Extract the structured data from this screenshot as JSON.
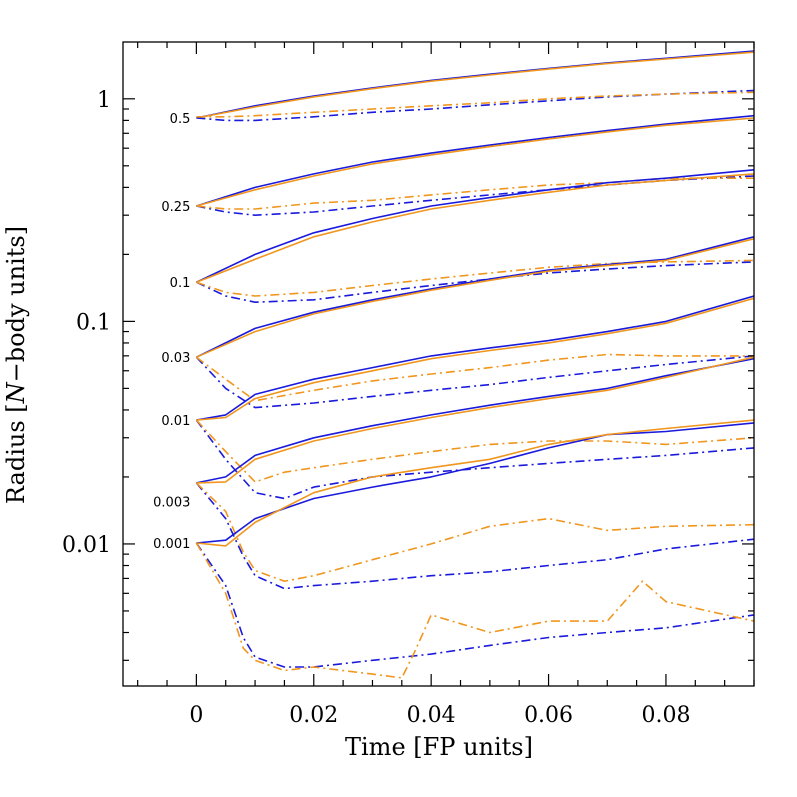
{
  "chart_data": {
    "type": "line",
    "xlabel": "Time [FP units]",
    "ylabel_parts": [
      "Radius [",
      "N",
      "−body units]"
    ],
    "xlim": [
      -0.0125,
      0.095
    ],
    "ylim": [
      0.0023,
      1.8
    ],
    "yscale": "log",
    "grid": false,
    "x_ticks": [
      0,
      0.02,
      0.04,
      0.06,
      0.08
    ],
    "x_tick_labels": [
      "0",
      "0.02",
      "0.04",
      "0.06",
      "0.08"
    ],
    "y_ticks": [
      0.01,
      0.1,
      1
    ],
    "y_tick_labels": [
      "0.01",
      "0.1",
      "1"
    ],
    "colors": {
      "blue": "#1a1adc",
      "orange": "#f0961e"
    },
    "mass_fraction_labels": [
      {
        "text": "0.5",
        "y": 0.82
      },
      {
        "text": "0.25",
        "y": 0.33
      },
      {
        "text": "0.1",
        "y": 0.15
      },
      {
        "text": "0.03",
        "y": 0.069
      },
      {
        "text": "0.01",
        "y": 0.036
      },
      {
        "text": "0.003",
        "y": 0.0155
      },
      {
        "text": "0.001",
        "y": 0.0101
      }
    ],
    "series": [
      {
        "color": "blue",
        "style": "solid",
        "x": [
          0,
          0.01,
          0.02,
          0.03,
          0.04,
          0.05,
          0.06,
          0.07,
          0.08,
          0.095
        ],
        "y": [
          0.82,
          0.93,
          1.03,
          1.12,
          1.21,
          1.29,
          1.37,
          1.45,
          1.52,
          1.64
        ]
      },
      {
        "color": "orange",
        "style": "solid",
        "x": [
          0,
          0.01,
          0.02,
          0.03,
          0.04,
          0.05,
          0.06,
          0.07,
          0.08,
          0.095
        ],
        "y": [
          0.82,
          0.92,
          1.02,
          1.11,
          1.2,
          1.28,
          1.36,
          1.44,
          1.51,
          1.62
        ]
      },
      {
        "color": "blue",
        "style": "dashdot",
        "x": [
          0,
          0.005,
          0.01,
          0.02,
          0.03,
          0.04,
          0.05,
          0.06,
          0.07,
          0.08,
          0.095
        ],
        "y": [
          0.82,
          0.8,
          0.8,
          0.83,
          0.87,
          0.9,
          0.94,
          0.98,
          1.02,
          1.05,
          1.09
        ]
      },
      {
        "color": "orange",
        "style": "dashdot",
        "x": [
          0,
          0.005,
          0.01,
          0.02,
          0.03,
          0.04,
          0.05,
          0.06,
          0.07,
          0.08,
          0.095
        ],
        "y": [
          0.83,
          0.83,
          0.84,
          0.87,
          0.9,
          0.93,
          0.96,
          1.0,
          1.03,
          1.05,
          1.07
        ]
      },
      {
        "color": "blue",
        "style": "solid",
        "x": [
          0,
          0.01,
          0.02,
          0.03,
          0.04,
          0.05,
          0.06,
          0.07,
          0.08,
          0.095
        ],
        "y": [
          0.33,
          0.4,
          0.46,
          0.52,
          0.57,
          0.62,
          0.67,
          0.72,
          0.77,
          0.84
        ]
      },
      {
        "color": "orange",
        "style": "solid",
        "x": [
          0,
          0.01,
          0.02,
          0.03,
          0.04,
          0.05,
          0.06,
          0.07,
          0.08,
          0.095
        ],
        "y": [
          0.33,
          0.39,
          0.45,
          0.51,
          0.56,
          0.61,
          0.66,
          0.71,
          0.76,
          0.82
        ]
      },
      {
        "color": "blue",
        "style": "dashdot",
        "x": [
          0,
          0.005,
          0.01,
          0.02,
          0.03,
          0.04,
          0.05,
          0.06,
          0.07,
          0.08,
          0.095
        ],
        "y": [
          0.33,
          0.31,
          0.3,
          0.31,
          0.33,
          0.35,
          0.37,
          0.39,
          0.41,
          0.43,
          0.45
        ]
      },
      {
        "color": "orange",
        "style": "dashdot",
        "x": [
          0,
          0.005,
          0.01,
          0.02,
          0.03,
          0.04,
          0.05,
          0.06,
          0.07,
          0.08,
          0.095
        ],
        "y": [
          0.33,
          0.32,
          0.32,
          0.34,
          0.35,
          0.37,
          0.39,
          0.41,
          0.42,
          0.44,
          0.44
        ]
      },
      {
        "color": "blue",
        "style": "solid",
        "x": [
          0,
          0.01,
          0.02,
          0.03,
          0.04,
          0.05,
          0.06,
          0.07,
          0.08,
          0.095
        ],
        "y": [
          0.15,
          0.2,
          0.25,
          0.29,
          0.33,
          0.36,
          0.39,
          0.42,
          0.44,
          0.48
        ]
      },
      {
        "color": "orange",
        "style": "solid",
        "x": [
          0,
          0.01,
          0.02,
          0.03,
          0.04,
          0.05,
          0.06,
          0.07,
          0.08,
          0.095
        ],
        "y": [
          0.15,
          0.19,
          0.24,
          0.28,
          0.32,
          0.35,
          0.38,
          0.41,
          0.43,
          0.46
        ]
      },
      {
        "color": "blue",
        "style": "dashdot",
        "x": [
          0,
          0.005,
          0.01,
          0.02,
          0.03,
          0.04,
          0.05,
          0.06,
          0.07,
          0.08,
          0.095
        ],
        "y": [
          0.15,
          0.13,
          0.122,
          0.125,
          0.135,
          0.145,
          0.155,
          0.165,
          0.172,
          0.178,
          0.185
        ]
      },
      {
        "color": "orange",
        "style": "dashdot",
        "x": [
          0,
          0.005,
          0.01,
          0.02,
          0.03,
          0.04,
          0.05,
          0.06,
          0.07,
          0.08,
          0.095
        ],
        "y": [
          0.15,
          0.135,
          0.13,
          0.135,
          0.145,
          0.155,
          0.165,
          0.175,
          0.182,
          0.185,
          0.188
        ]
      },
      {
        "color": "blue",
        "style": "solid",
        "x": [
          0,
          0.01,
          0.02,
          0.03,
          0.04,
          0.05,
          0.06,
          0.07,
          0.08,
          0.095
        ],
        "y": [
          0.069,
          0.093,
          0.11,
          0.125,
          0.14,
          0.155,
          0.17,
          0.18,
          0.19,
          0.24
        ]
      },
      {
        "color": "orange",
        "style": "solid",
        "x": [
          0,
          0.01,
          0.02,
          0.03,
          0.04,
          0.05,
          0.06,
          0.07,
          0.08,
          0.095
        ],
        "y": [
          0.069,
          0.09,
          0.108,
          0.123,
          0.138,
          0.153,
          0.168,
          0.178,
          0.188,
          0.235
        ]
      },
      {
        "color": "blue",
        "style": "dashdot",
        "x": [
          0,
          0.005,
          0.01,
          0.02,
          0.03,
          0.04,
          0.05,
          0.06,
          0.07,
          0.08,
          0.095
        ],
        "y": [
          0.069,
          0.05,
          0.041,
          0.043,
          0.046,
          0.049,
          0.052,
          0.056,
          0.06,
          0.064,
          0.07
        ]
      },
      {
        "color": "orange",
        "style": "dashdot",
        "x": [
          0,
          0.005,
          0.01,
          0.02,
          0.03,
          0.04,
          0.05,
          0.06,
          0.07,
          0.08,
          0.095
        ],
        "y": [
          0.069,
          0.055,
          0.044,
          0.049,
          0.054,
          0.058,
          0.062,
          0.067,
          0.071,
          0.07,
          0.07
        ]
      },
      {
        "color": "blue",
        "style": "solid",
        "x": [
          0,
          0.005,
          0.01,
          0.02,
          0.03,
          0.04,
          0.05,
          0.06,
          0.07,
          0.08,
          0.095
        ],
        "y": [
          0.036,
          0.038,
          0.047,
          0.055,
          0.062,
          0.07,
          0.076,
          0.082,
          0.09,
          0.1,
          0.13
        ]
      },
      {
        "color": "orange",
        "style": "solid",
        "x": [
          0,
          0.005,
          0.01,
          0.02,
          0.03,
          0.04,
          0.05,
          0.06,
          0.07,
          0.08,
          0.095
        ],
        "y": [
          0.036,
          0.037,
          0.045,
          0.053,
          0.06,
          0.068,
          0.074,
          0.08,
          0.088,
          0.098,
          0.127
        ]
      },
      {
        "color": "blue",
        "style": "dashdot",
        "x": [
          0,
          0.005,
          0.01,
          0.015,
          0.02,
          0.03,
          0.04,
          0.05,
          0.06,
          0.07,
          0.08,
          0.095
        ],
        "y": [
          0.036,
          0.024,
          0.017,
          0.016,
          0.018,
          0.02,
          0.021,
          0.022,
          0.023,
          0.024,
          0.025,
          0.027
        ]
      },
      {
        "color": "orange",
        "style": "dashdot",
        "x": [
          0,
          0.005,
          0.01,
          0.015,
          0.02,
          0.03,
          0.04,
          0.05,
          0.06,
          0.07,
          0.08,
          0.095
        ],
        "y": [
          0.036,
          0.026,
          0.019,
          0.021,
          0.022,
          0.024,
          0.026,
          0.028,
          0.029,
          0.029,
          0.028,
          0.03
        ]
      },
      {
        "color": "blue",
        "style": "solid",
        "x": [
          0,
          0.005,
          0.01,
          0.02,
          0.03,
          0.04,
          0.05,
          0.06,
          0.07,
          0.08,
          0.095
        ],
        "y": [
          0.0188,
          0.02,
          0.025,
          0.03,
          0.034,
          0.038,
          0.042,
          0.046,
          0.05,
          0.057,
          0.068
        ]
      },
      {
        "color": "orange",
        "style": "solid",
        "x": [
          0,
          0.005,
          0.01,
          0.02,
          0.03,
          0.04,
          0.05,
          0.06,
          0.07,
          0.08,
          0.095
        ],
        "y": [
          0.0188,
          0.019,
          0.024,
          0.029,
          0.033,
          0.037,
          0.041,
          0.045,
          0.049,
          0.056,
          0.069
        ]
      },
      {
        "color": "blue",
        "style": "dashdot",
        "x": [
          0,
          0.005,
          0.008,
          0.01,
          0.015,
          0.02,
          0.03,
          0.04,
          0.05,
          0.06,
          0.07,
          0.08,
          0.095
        ],
        "y": [
          0.0188,
          0.013,
          0.0088,
          0.0072,
          0.0063,
          0.0065,
          0.0068,
          0.0072,
          0.0075,
          0.008,
          0.0085,
          0.0095,
          0.0105
        ]
      },
      {
        "color": "orange",
        "style": "dashdot",
        "x": [
          0,
          0.005,
          0.008,
          0.01,
          0.015,
          0.02,
          0.03,
          0.04,
          0.05,
          0.06,
          0.07,
          0.08,
          0.095
        ],
        "y": [
          0.0188,
          0.014,
          0.0092,
          0.0076,
          0.0068,
          0.0072,
          0.0085,
          0.01,
          0.012,
          0.013,
          0.0115,
          0.012,
          0.0122
        ]
      },
      {
        "color": "blue",
        "style": "solid",
        "x": [
          0,
          0.005,
          0.01,
          0.02,
          0.03,
          0.04,
          0.05,
          0.06,
          0.07,
          0.08,
          0.095
        ],
        "y": [
          0.0101,
          0.0104,
          0.013,
          0.016,
          0.018,
          0.02,
          0.023,
          0.027,
          0.031,
          0.032,
          0.035
        ]
      },
      {
        "color": "orange",
        "style": "solid",
        "x": [
          0,
          0.005,
          0.01,
          0.02,
          0.03,
          0.04,
          0.05,
          0.06,
          0.07,
          0.08,
          0.095
        ],
        "y": [
          0.0101,
          0.0098,
          0.0125,
          0.017,
          0.02,
          0.022,
          0.024,
          0.028,
          0.031,
          0.033,
          0.036
        ]
      },
      {
        "color": "blue",
        "style": "dashdot",
        "x": [
          0,
          0.005,
          0.008,
          0.01,
          0.015,
          0.02,
          0.03,
          0.04,
          0.05,
          0.06,
          0.07,
          0.08,
          0.095
        ],
        "y": [
          0.0101,
          0.0065,
          0.0038,
          0.0031,
          0.0028,
          0.0028,
          0.003,
          0.0032,
          0.0035,
          0.0038,
          0.004,
          0.0042,
          0.0048
        ]
      },
      {
        "color": "orange",
        "style": "dashdot",
        "x": [
          0,
          0.005,
          0.008,
          0.01,
          0.015,
          0.02,
          0.03,
          0.035,
          0.037,
          0.04,
          0.05,
          0.06,
          0.07,
          0.076,
          0.08,
          0.095
        ],
        "y": [
          0.0101,
          0.006,
          0.0034,
          0.003,
          0.0027,
          0.0028,
          0.0026,
          0.0025,
          0.0032,
          0.0048,
          0.004,
          0.0045,
          0.0045,
          0.0068,
          0.0055,
          0.0045
        ]
      }
    ]
  }
}
